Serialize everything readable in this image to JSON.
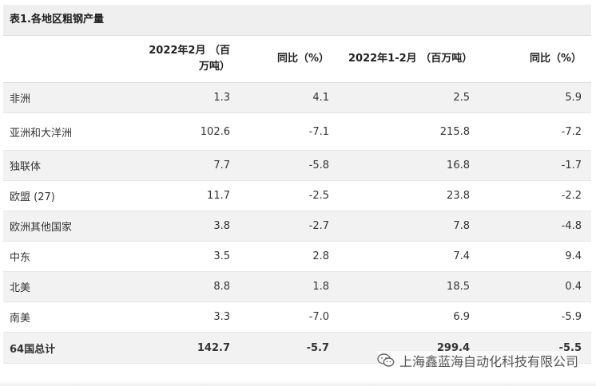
{
  "table": {
    "caption": "表1.各地区粗钢产量",
    "headers": [
      "",
      "2022年2月 （百万吨）",
      "同比（%）",
      "2022年1-2月 （百万吨）",
      "同比（%）"
    ],
    "rows": [
      [
        "非洲",
        "1.3",
        "4.1",
        "2.5",
        "5.9"
      ],
      [
        "亚洲和大洋洲",
        "102.6",
        "-7.1",
        "215.8",
        "-7.2"
      ],
      [
        "独联体",
        "7.7",
        "-5.8",
        "16.8",
        "-1.7"
      ],
      [
        "欧盟 (27)",
        "11.7",
        "-2.5",
        "23.8",
        "-2.2"
      ],
      [
        "欧洲其他国家",
        "3.8",
        "-2.7",
        "7.8",
        "-4.8"
      ],
      [
        "中东",
        "3.5",
        "2.8",
        "7.4",
        "9.4"
      ],
      [
        "北美",
        "8.8",
        "1.8",
        "18.5",
        "0.4"
      ],
      [
        "南美",
        "3.3",
        "-7.0",
        "6.9",
        "-5.9"
      ]
    ],
    "total": [
      "64国总计",
      "142.7",
      "-5.7",
      "299.4",
      "-5.5"
    ]
  },
  "watermark": {
    "text": "上海鑫蓝海自动化科技有限公司",
    "icon": "wechat-icon"
  }
}
